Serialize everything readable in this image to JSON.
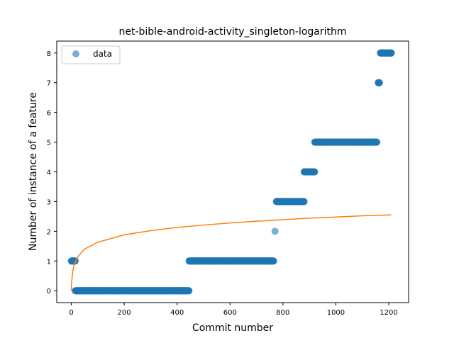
{
  "chart_data": {
    "type": "scatter",
    "title": "net-bible-android-activity_singleton-logarithm",
    "xlabel": "Commit number",
    "ylabel": "Number of instance of a feature",
    "xlim": [
      -55,
      1275
    ],
    "ylim": [
      -0.4,
      8.4
    ],
    "xticks": [
      0,
      200,
      400,
      600,
      800,
      1000,
      1200
    ],
    "yticks": [
      0,
      1,
      2,
      3,
      4,
      5,
      6,
      7,
      8
    ],
    "grid": false,
    "legend": {
      "placement": "top-left",
      "entries": [
        "data"
      ]
    },
    "colors": {
      "data": "#1f77b4",
      "fit": "#ff7f0e"
    },
    "series": [
      {
        "name": "data",
        "kind": "scatter",
        "segments": [
          {
            "x_start": 0,
            "x_end": 15,
            "y": 1
          },
          {
            "x_start": 15,
            "x_end": 445,
            "y": 0
          },
          {
            "x_start": 445,
            "x_end": 765,
            "y": 1
          },
          {
            "x_start": 770,
            "x_end": 770,
            "y": 2
          },
          {
            "x_start": 775,
            "x_end": 880,
            "y": 3
          },
          {
            "x_start": 880,
            "x_end": 920,
            "y": 4
          },
          {
            "x_start": 920,
            "x_end": 1155,
            "y": 5
          },
          {
            "x_start": 1160,
            "x_end": 1165,
            "y": 7
          },
          {
            "x_start": 1168,
            "x_end": 1210,
            "y": 8
          }
        ]
      },
      {
        "kind": "line",
        "x": [
          0,
          1,
          5,
          10,
          25,
          50,
          100,
          200,
          300,
          400,
          500,
          600,
          700,
          800,
          900,
          1000,
          1100,
          1210
        ],
        "y": [
          0.0,
          0.25,
          0.63,
          0.85,
          1.15,
          1.4,
          1.63,
          1.88,
          2.02,
          2.13,
          2.21,
          2.28,
          2.34,
          2.39,
          2.44,
          2.48,
          2.52,
          2.55
        ]
      }
    ]
  }
}
